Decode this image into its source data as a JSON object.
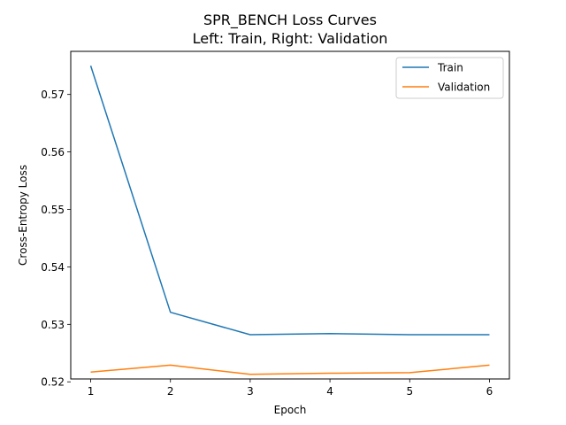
{
  "chart_data": {
    "type": "line",
    "title": "SPR_BENCH Loss Curves",
    "subtitle": "Left: Train, Right: Validation",
    "xlabel": "Epoch",
    "ylabel": "Cross-Entropy Loss",
    "x": [
      1,
      2,
      3,
      4,
      5,
      6
    ],
    "xticks": [
      "1",
      "2",
      "3",
      "4",
      "5",
      "6"
    ],
    "yticks": [
      "0.52",
      "0.53",
      "0.54",
      "0.55",
      "0.56",
      "0.57"
    ],
    "ylim": [
      0.5205,
      0.5775
    ],
    "xlim": [
      0.75,
      6.25
    ],
    "grid": false,
    "legend_position": "top-right",
    "series": [
      {
        "name": "Train",
        "color": "#1f77b4",
        "values": [
          0.575,
          0.5321,
          0.5282,
          0.5284,
          0.5282,
          0.5282
        ]
      },
      {
        "name": "Validation",
        "color": "#ff7f0e",
        "values": [
          0.5217,
          0.5229,
          0.5213,
          0.5215,
          0.5216,
          0.5229
        ]
      }
    ]
  }
}
